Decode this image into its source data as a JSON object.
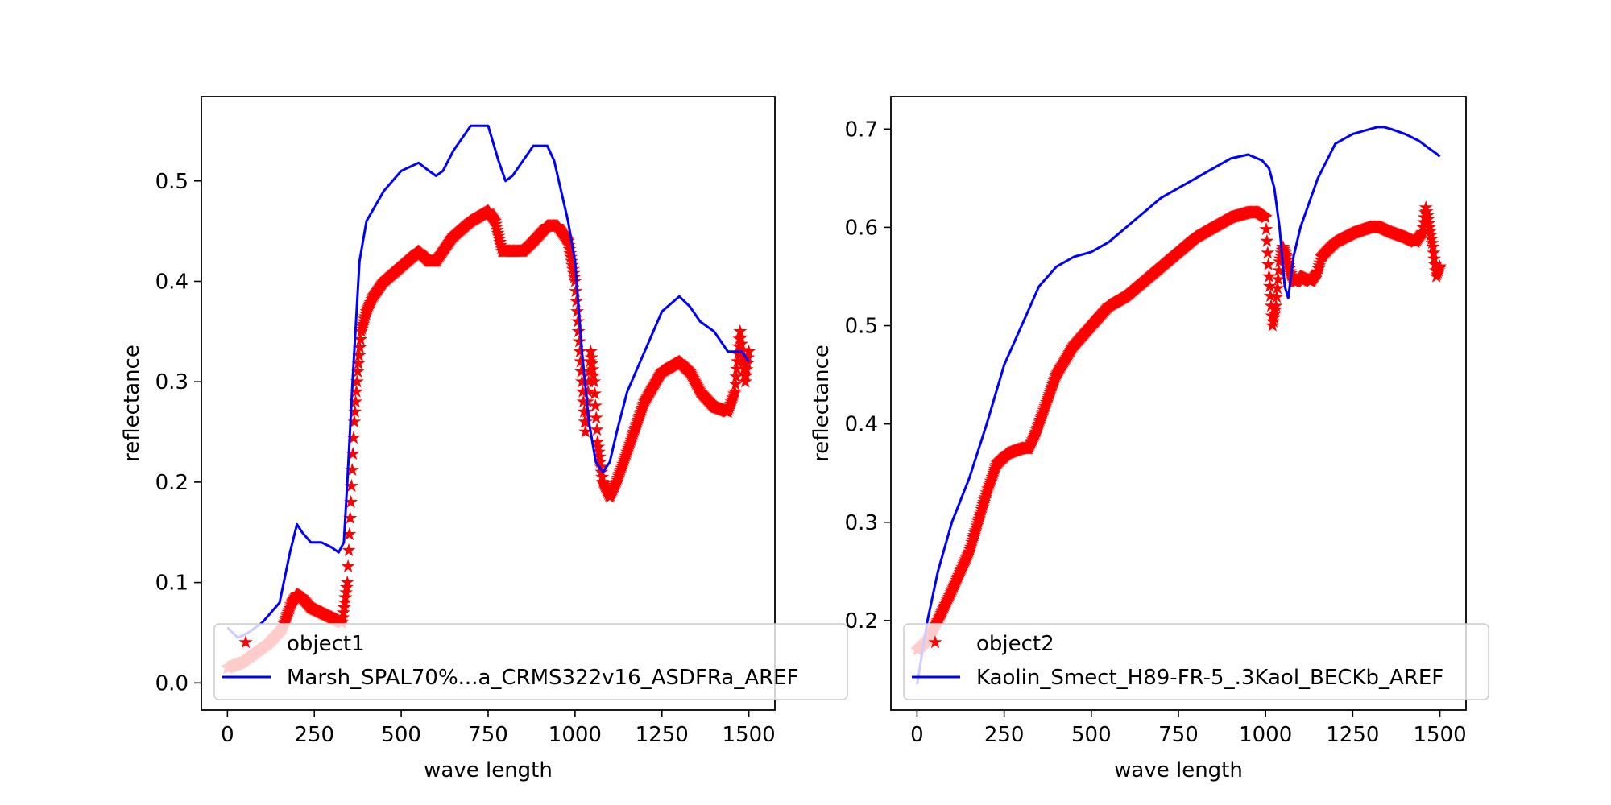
{
  "colors": {
    "object_series": "#ff0000",
    "reference_series": "#0000ff",
    "frame": "#000000",
    "background": "#ffffff"
  },
  "chart_data": [
    {
      "type": "line",
      "title": "",
      "xlabel": "wave length",
      "ylabel": "reflectance",
      "xlim": [
        -75,
        1575
      ],
      "ylim": [
        -0.027,
        0.584
      ],
      "xticks": [
        0,
        250,
        500,
        750,
        1000,
        1250,
        1500
      ],
      "yticks": [
        0.0,
        0.1,
        0.2,
        0.3,
        0.4,
        0.5
      ],
      "ytick_labels": [
        "0.0",
        "0.1",
        "0.2",
        "0.3",
        "0.4",
        "0.5"
      ],
      "grid": false,
      "legend_position": "lower-left",
      "series": [
        {
          "name": "object1",
          "style": "star-markers",
          "color": "#ff0000",
          "x": [
            0,
            40,
            80,
            120,
            160,
            185,
            200,
            215,
            240,
            270,
            300,
            330,
            345,
            355,
            365,
            375,
            385,
            400,
            420,
            450,
            500,
            550,
            580,
            600,
            620,
            650,
            700,
            750,
            770,
            790,
            820,
            850,
            880,
            920,
            950,
            980,
            1000,
            1020,
            1030,
            1045,
            1055,
            1065,
            1080,
            1100,
            1120,
            1140,
            1170,
            1200,
            1250,
            1300,
            1330,
            1360,
            1400,
            1440,
            1460,
            1475,
            1490,
            1500
          ],
          "y": [
            0.015,
            0.02,
            0.03,
            0.04,
            0.055,
            0.08,
            0.088,
            0.085,
            0.075,
            0.07,
            0.065,
            0.06,
            0.1,
            0.18,
            0.26,
            0.31,
            0.35,
            0.37,
            0.385,
            0.4,
            0.415,
            0.43,
            0.42,
            0.42,
            0.43,
            0.445,
            0.46,
            0.47,
            0.46,
            0.43,
            0.43,
            0.43,
            0.44,
            0.455,
            0.455,
            0.44,
            0.4,
            0.3,
            0.25,
            0.33,
            0.3,
            0.24,
            0.2,
            0.185,
            0.2,
            0.22,
            0.25,
            0.28,
            0.31,
            0.32,
            0.31,
            0.29,
            0.275,
            0.27,
            0.29,
            0.35,
            0.3,
            0.33
          ]
        },
        {
          "name": "Marsh_SPAL70%...a_CRMS322v16_ASDFRa_AREF",
          "style": "line",
          "color": "#0000ff",
          "x": [
            0,
            30,
            60,
            100,
            150,
            180,
            200,
            215,
            240,
            270,
            300,
            320,
            335,
            345,
            360,
            380,
            400,
            450,
            500,
            550,
            580,
            600,
            620,
            650,
            700,
            750,
            780,
            800,
            820,
            850,
            880,
            920,
            940,
            960,
            980,
            1000,
            1020,
            1040,
            1060,
            1080,
            1100,
            1120,
            1150,
            1200,
            1250,
            1300,
            1330,
            1360,
            1400,
            1440,
            1460,
            1480,
            1500
          ],
          "y": [
            0.055,
            0.045,
            0.05,
            0.06,
            0.08,
            0.13,
            0.158,
            0.15,
            0.14,
            0.14,
            0.135,
            0.13,
            0.14,
            0.2,
            0.3,
            0.42,
            0.46,
            0.49,
            0.51,
            0.518,
            0.51,
            0.505,
            0.51,
            0.53,
            0.555,
            0.555,
            0.52,
            0.5,
            0.505,
            0.52,
            0.535,
            0.535,
            0.52,
            0.49,
            0.46,
            0.42,
            0.33,
            0.26,
            0.22,
            0.21,
            0.22,
            0.25,
            0.29,
            0.33,
            0.37,
            0.385,
            0.375,
            0.36,
            0.35,
            0.33,
            0.33,
            0.33,
            0.32
          ]
        }
      ]
    },
    {
      "type": "line",
      "title": "",
      "xlabel": "wave length",
      "ylabel": "reflectance",
      "xlim": [
        -75,
        1575
      ],
      "ylim": [
        0.109,
        0.733
      ],
      "xticks": [
        0,
        250,
        500,
        750,
        1000,
        1250,
        1500
      ],
      "yticks": [
        0.2,
        0.3,
        0.4,
        0.5,
        0.6,
        0.7
      ],
      "ytick_labels": [
        "0.2",
        "0.3",
        "0.4",
        "0.5",
        "0.6",
        "0.7"
      ],
      "grid": false,
      "legend_position": "lower-left",
      "series": [
        {
          "name": "object2",
          "style": "star-markers",
          "color": "#ff0000",
          "x": [
            0,
            30,
            60,
            100,
            150,
            200,
            230,
            260,
            300,
            320,
            340,
            370,
            400,
            450,
            500,
            550,
            600,
            650,
            700,
            750,
            800,
            850,
            900,
            950,
            980,
            1000,
            1010,
            1020,
            1030,
            1040,
            1050,
            1060,
            1070,
            1080,
            1090,
            1100,
            1130,
            1150,
            1160,
            1180,
            1200,
            1250,
            1300,
            1330,
            1360,
            1400,
            1430,
            1450,
            1460,
            1470,
            1480,
            1490,
            1500
          ],
          "y": [
            0.17,
            0.18,
            0.2,
            0.23,
            0.27,
            0.33,
            0.36,
            0.37,
            0.375,
            0.375,
            0.39,
            0.42,
            0.45,
            0.48,
            0.5,
            0.52,
            0.53,
            0.545,
            0.56,
            0.575,
            0.59,
            0.6,
            0.61,
            0.615,
            0.615,
            0.61,
            0.55,
            0.5,
            0.52,
            0.565,
            0.58,
            0.57,
            0.555,
            0.545,
            0.545,
            0.55,
            0.545,
            0.555,
            0.57,
            0.578,
            0.585,
            0.594,
            0.6,
            0.6,
            0.595,
            0.59,
            0.585,
            0.595,
            0.62,
            0.6,
            0.58,
            0.55,
            0.56
          ]
        },
        {
          "name": "Kaolin_Smect_H89-FR-5_.3Kaol_BECKb_AREF",
          "style": "line",
          "color": "#0000ff",
          "x": [
            0,
            30,
            60,
            100,
            150,
            200,
            250,
            300,
            350,
            400,
            450,
            500,
            550,
            600,
            650,
            700,
            750,
            800,
            850,
            900,
            950,
            990,
            1010,
            1025,
            1040,
            1055,
            1065,
            1080,
            1100,
            1120,
            1150,
            1200,
            1250,
            1300,
            1320,
            1340,
            1360,
            1400,
            1440,
            1470,
            1490,
            1500
          ],
          "y": [
            0.135,
            0.2,
            0.25,
            0.3,
            0.345,
            0.4,
            0.46,
            0.5,
            0.54,
            0.56,
            0.57,
            0.575,
            0.585,
            0.6,
            0.615,
            0.63,
            0.64,
            0.65,
            0.66,
            0.67,
            0.674,
            0.668,
            0.66,
            0.64,
            0.6,
            0.54,
            0.528,
            0.57,
            0.6,
            0.62,
            0.65,
            0.685,
            0.695,
            0.7,
            0.702,
            0.702,
            0.7,
            0.695,
            0.688,
            0.68,
            0.675,
            0.672
          ]
        }
      ]
    }
  ]
}
